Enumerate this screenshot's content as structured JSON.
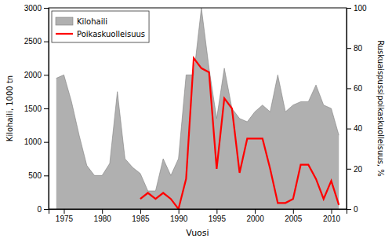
{
  "chart_data": {
    "type": "area",
    "xlabel": "Vuosi",
    "ylabel": "Kilohaili, 1000 tn",
    "y2label": "Ruskuaispussipoikaskuolleisuus, %",
    "legend": "upper left",
    "xlim": [
      1973,
      2012
    ],
    "ylim": [
      0,
      3000
    ],
    "y2lim": [
      0,
      100
    ],
    "xticks": [
      1975,
      1980,
      1985,
      1990,
      1995,
      2000,
      2005,
      2010
    ],
    "yticks": [
      0,
      500,
      1000,
      1500,
      2000,
      2500,
      3000
    ],
    "y2ticks": [
      0,
      20,
      40,
      60,
      80,
      100
    ],
    "series": [
      {
        "name": "Kilohaili",
        "type": "area",
        "color": "#b0b0b0",
        "x": [
          1974,
          1975,
          1976,
          1977,
          1978,
          1979,
          1980,
          1981,
          1982,
          1983,
          1984,
          1985,
          1986,
          1987,
          1988,
          1989,
          1990,
          1991,
          1992,
          1993,
          1994,
          1995,
          1996,
          1997,
          1998,
          1999,
          2000,
          2001,
          2002,
          2003,
          2004,
          2005,
          2006,
          2007,
          2008,
          2009,
          2010,
          2011
        ],
        "values": [
          1950,
          2000,
          1600,
          1100,
          650,
          500,
          500,
          680,
          1750,
          750,
          620,
          530,
          270,
          270,
          750,
          500,
          750,
          2000,
          2000,
          3000,
          2100,
          1350,
          2100,
          1500,
          1350,
          1300,
          1450,
          1550,
          1450,
          2000,
          1450,
          1550,
          1600,
          1600,
          1850,
          1550,
          1500,
          1100
        ]
      },
      {
        "name": "Poikaskuolleisuus",
        "type": "line",
        "color": "#ff0000",
        "axis": "y2",
        "x": [
          1985,
          1986,
          1987,
          1988,
          1989,
          1990,
          1991,
          1992,
          1993,
          1994,
          1995,
          1996,
          1997,
          1998,
          1999,
          2000,
          2001,
          2002,
          2003,
          2004,
          2005,
          2006,
          2007,
          2008,
          2009,
          2010,
          2011
        ],
        "values": [
          5,
          8,
          5,
          8,
          5,
          0,
          15,
          75,
          70,
          68,
          20,
          55,
          50,
          18,
          35,
          35,
          35,
          20,
          3,
          3,
          5,
          22,
          22,
          15,
          5,
          14,
          2
        ]
      }
    ]
  }
}
